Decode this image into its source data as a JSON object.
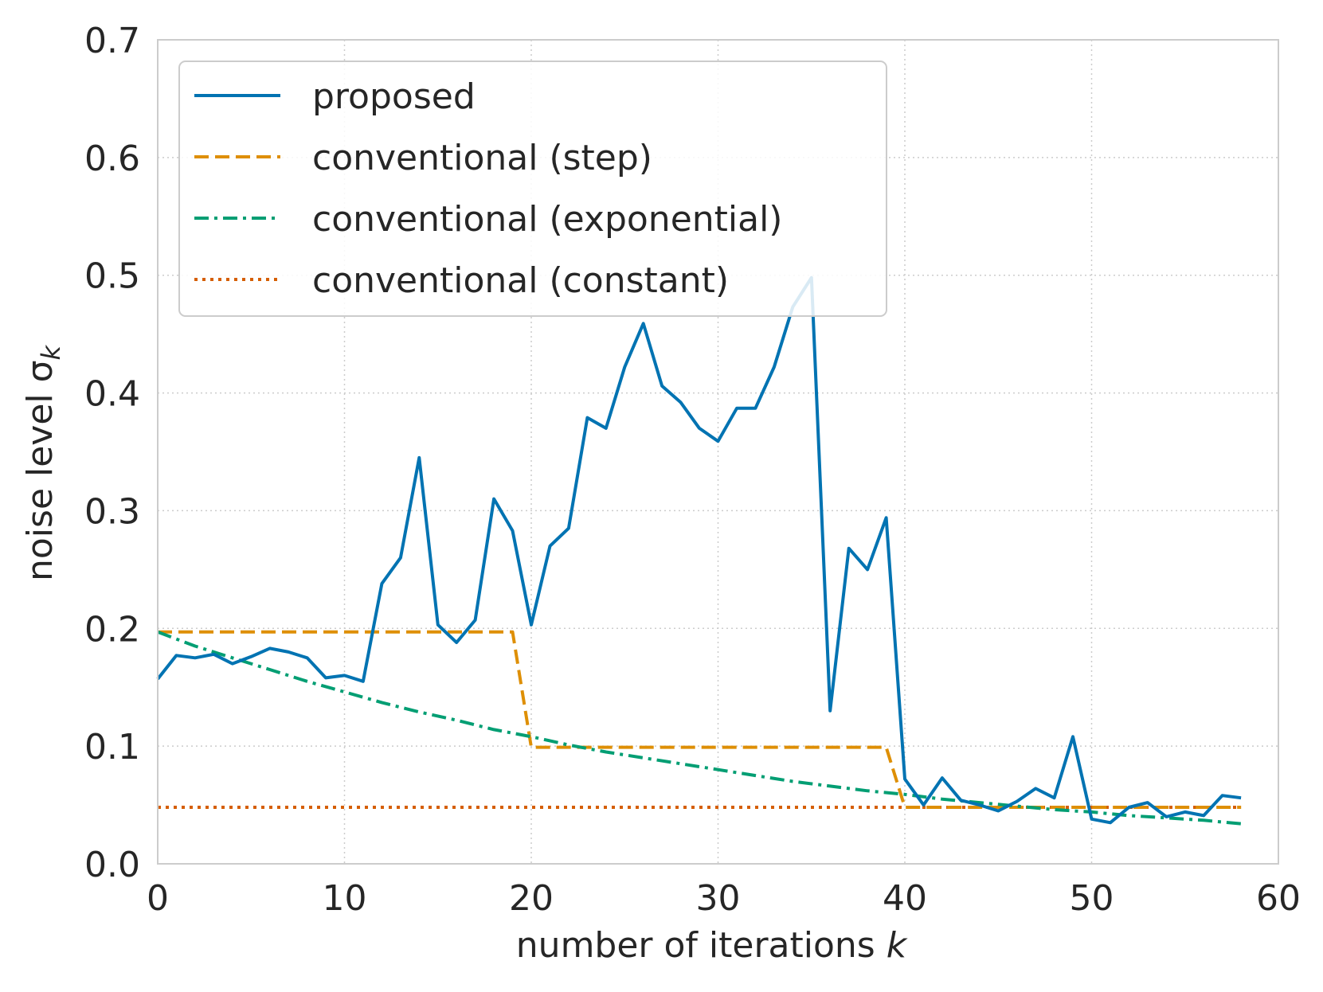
{
  "chart_data": {
    "type": "line",
    "title": "",
    "xlabel": "number of iterations k",
    "xlabel_text": "number of iterations ",
    "xlabel_var": "k",
    "ylabel": "noise level σ_k",
    "ylabel_text": "noise level σ",
    "ylabel_sub": "k",
    "xlim": [
      0,
      60
    ],
    "ylim": [
      0,
      0.7
    ],
    "xticks": [
      0,
      10,
      20,
      30,
      40,
      50,
      60
    ],
    "xtick_labels": [
      "0",
      "10",
      "20",
      "30",
      "40",
      "50",
      "60"
    ],
    "yticks": [
      0,
      0.1,
      0.2,
      0.3,
      0.4,
      0.5,
      0.6,
      0.7
    ],
    "ytick_labels": [
      "0.0",
      "0.1",
      "0.2",
      "0.3",
      "0.4",
      "0.5",
      "0.6",
      "0.7"
    ],
    "grid": true,
    "legend_position": "top-left",
    "series": [
      {
        "name": "proposed",
        "color": "#0173b2",
        "style": "solid",
        "x": [
          0,
          1,
          2,
          3,
          4,
          5,
          6,
          7,
          8,
          9,
          10,
          11,
          12,
          13,
          14,
          15,
          16,
          17,
          18,
          19,
          20,
          21,
          22,
          23,
          24,
          25,
          26,
          27,
          28,
          29,
          30,
          31,
          32,
          33,
          34,
          35,
          36,
          37,
          38,
          39,
          40,
          41,
          42,
          43,
          44,
          45,
          46,
          47,
          48,
          49,
          50,
          51,
          52,
          53,
          54,
          55,
          56,
          57,
          58
        ],
        "values": [
          0.157,
          0.177,
          0.175,
          0.178,
          0.17,
          0.176,
          0.183,
          0.18,
          0.175,
          0.158,
          0.16,
          0.155,
          0.238,
          0.26,
          0.345,
          0.203,
          0.188,
          0.207,
          0.31,
          0.283,
          0.203,
          0.27,
          0.285,
          0.379,
          0.37,
          0.422,
          0.459,
          0.406,
          0.392,
          0.37,
          0.359,
          0.387,
          0.387,
          0.422,
          0.473,
          0.498,
          0.13,
          0.268,
          0.25,
          0.294,
          0.072,
          0.05,
          0.073,
          0.054,
          0.05,
          0.045,
          0.053,
          0.064,
          0.056,
          0.108,
          0.038,
          0.035,
          0.048,
          0.052,
          0.04,
          0.044,
          0.041,
          0.058,
          0.056
        ]
      },
      {
        "name": "conventional (step)",
        "color": "#de8f05",
        "style": "dashed",
        "x": [
          0,
          19,
          20,
          39,
          40,
          58
        ],
        "values": [
          0.197,
          0.197,
          0.099,
          0.099,
          0.048,
          0.048
        ]
      },
      {
        "name": "conventional (exponential)",
        "color": "#029e73",
        "style": "dashdot",
        "x": [
          0,
          2,
          4,
          6,
          8,
          10,
          12,
          14,
          16,
          18,
          20,
          22,
          24,
          26,
          28,
          30,
          32,
          34,
          36,
          38,
          40,
          42,
          44,
          46,
          48,
          50,
          52,
          54,
          56,
          58
        ],
        "values": [
          0.197,
          0.185,
          0.175,
          0.165,
          0.155,
          0.146,
          0.137,
          0.129,
          0.122,
          0.114,
          0.108,
          0.101,
          0.095,
          0.09,
          0.085,
          0.08,
          0.075,
          0.07,
          0.066,
          0.062,
          0.059,
          0.055,
          0.052,
          0.049,
          0.046,
          0.044,
          0.041,
          0.039,
          0.037,
          0.034
        ]
      },
      {
        "name": "conventional (constant)",
        "color": "#d55e00",
        "style": "dotted",
        "x": [
          0,
          58
        ],
        "values": [
          0.048,
          0.048
        ]
      }
    ]
  }
}
